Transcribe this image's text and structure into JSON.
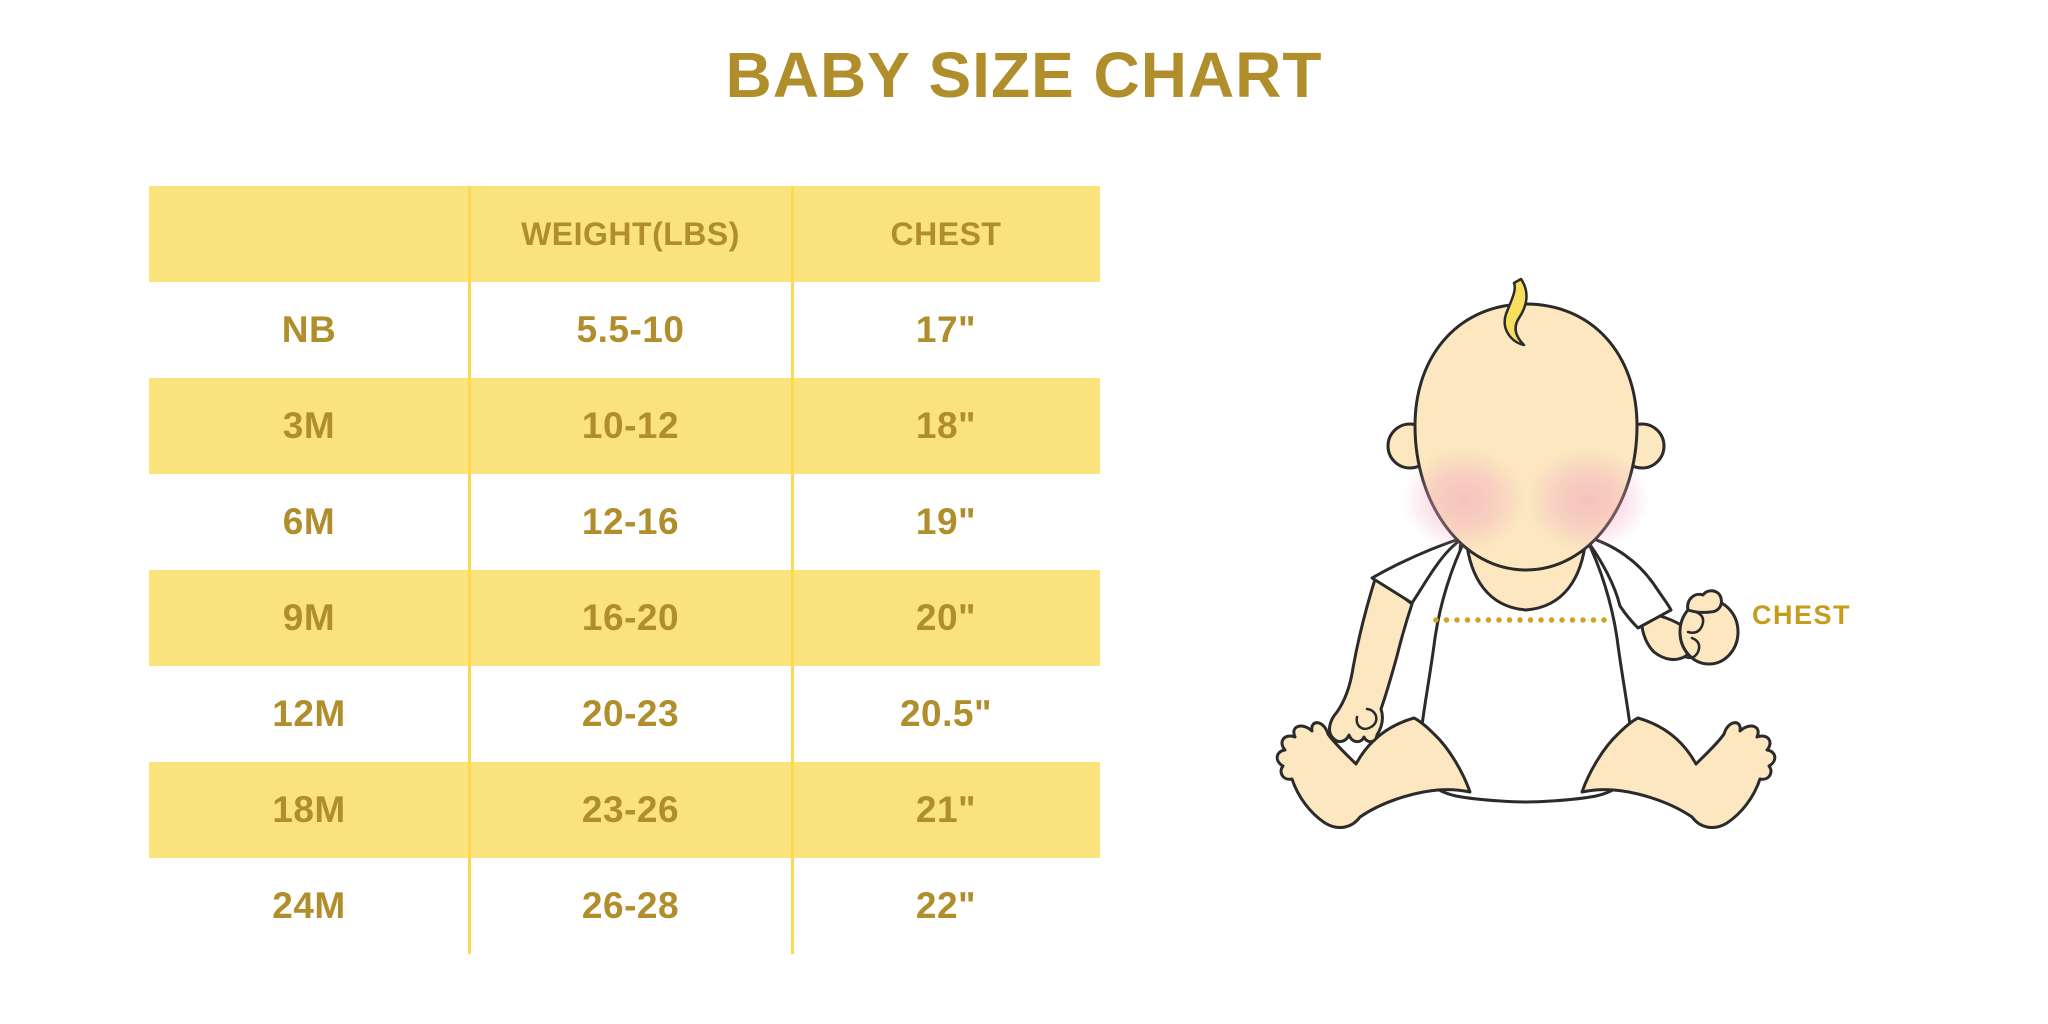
{
  "page": {
    "title": "BABY SIZE CHART"
  },
  "colors": {
    "gold_text": "#B08E2B",
    "row_yellow": "#FAE37D",
    "divider_yellow": "#FDD951",
    "label_gold": "#C59C1C",
    "dot_gold": "#CFA324",
    "skin": "#FCE7C0",
    "blush": "#F0A9BE",
    "hair": "#F7DE5D",
    "outline": "#2B2B2B",
    "onesie": "#FFFFFF"
  },
  "chart_data": {
    "type": "table",
    "title": "BABY SIZE CHART",
    "columns": [
      "",
      "WEIGHT(LBS)",
      "CHEST"
    ],
    "rows": [
      [
        "NB",
        "5.5-10",
        "17\""
      ],
      [
        "3M",
        "10-12",
        "18\""
      ],
      [
        "6M",
        "12-16",
        "19\""
      ],
      [
        "9M",
        "16-20",
        "20\""
      ],
      [
        "12M",
        "20-23",
        "20.5\""
      ],
      [
        "18M",
        "23-26",
        "21\""
      ],
      [
        "24M",
        "26-28",
        "22\""
      ]
    ],
    "layout": {
      "striped": true,
      "header_background": "#FAE37D",
      "stripe_background": "#FAE37D",
      "first_data_row": "white",
      "column_dividers": 2,
      "outer_border": "none"
    }
  },
  "illustration": {
    "label": "CHEST",
    "subject": "sitting cartoon baby in white onesie with dotted chest measurement line"
  }
}
